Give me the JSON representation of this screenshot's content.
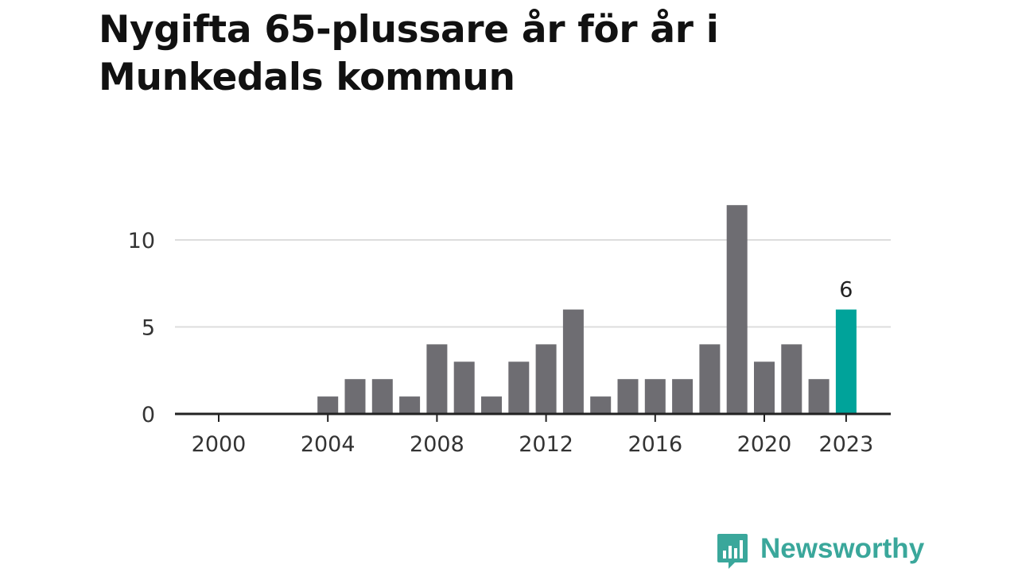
{
  "title": "Nygifta 65-plussare år för år i Munkedals kommun",
  "brand": {
    "name": "Newsworthy",
    "icon": "newsworthy-logo-icon",
    "color": "#3aa79b"
  },
  "chart_data": {
    "type": "bar",
    "title": "Nygifta 65-plussare år för år i Munkedals kommun",
    "xlabel": "",
    "ylabel": "",
    "x": [
      2000,
      2001,
      2002,
      2003,
      2004,
      2005,
      2006,
      2007,
      2008,
      2009,
      2010,
      2011,
      2012,
      2013,
      2014,
      2015,
      2016,
      2017,
      2018,
      2019,
      2020,
      2021,
      2022,
      2023
    ],
    "values": [
      0,
      0,
      0,
      0,
      1,
      2,
      2,
      1,
      4,
      3,
      1,
      3,
      4,
      6,
      1,
      2,
      2,
      2,
      4,
      12,
      3,
      4,
      2,
      6
    ],
    "x_ticks": [
      "2000",
      "2004",
      "2008",
      "2012",
      "2016",
      "2020",
      "2023"
    ],
    "y_ticks": [
      "0",
      "5",
      "10"
    ],
    "ylim": [
      0,
      12
    ],
    "grid": true,
    "highlight": {
      "x": 2023,
      "label": "6"
    },
    "colors": {
      "bar": "#6e6d72",
      "highlight": "#00a39a",
      "grid": "#dddddd",
      "axis": "#222222"
    }
  }
}
